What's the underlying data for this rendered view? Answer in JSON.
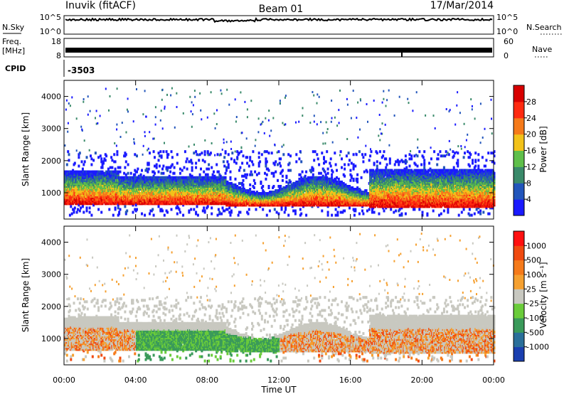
{
  "header": {
    "station": "Inuvik (fitACF)",
    "beam": "Beam 01",
    "date": "17/Mar/2014"
  },
  "strips": {
    "nsky_label": "N.Sky",
    "nsky_ticks": [
      "10^5",
      "10^0"
    ],
    "nsearch_label": "N.Search",
    "nsearch_ticks": [
      "10^5",
      "10^0"
    ],
    "freq_label": "Freq.",
    "freq_unit": "[MHz]",
    "freq_ticks": [
      "18",
      "8"
    ],
    "nave_label": "Nave",
    "nave_ticks": [
      "60",
      "0"
    ],
    "cpid_label": "CPID",
    "cpid_value": "-3503"
  },
  "chart_data": [
    {
      "type": "heatmap",
      "name": "power",
      "ylabel": "Slant Range [km]",
      "xlabel": "Time UT",
      "x_ticks": [
        "00:00",
        "04:00",
        "08:00",
        "12:00",
        "16:00",
        "20:00",
        "00:00"
      ],
      "xlim_hours": [
        0,
        24
      ],
      "y_ticks": [
        1000,
        2000,
        3000,
        4000
      ],
      "ylim": [
        180,
        4500
      ],
      "colorbar": {
        "label": "Power [dB]",
        "ticks": [
          "4",
          "8",
          "12",
          "16",
          "20",
          "24",
          "28"
        ],
        "colors": [
          "#1a1aff",
          "#2255bb",
          "#3a8a6a",
          "#5fbf4a",
          "#f2c21a",
          "#f57a1a",
          "#ff2a10",
          "#d80000"
        ]
      }
    },
    {
      "type": "heatmap",
      "name": "velocity",
      "ylabel": "Slant Range [km]",
      "xlabel": "Time UT",
      "x_ticks": [
        "00:00",
        "04:00",
        "08:00",
        "12:00",
        "16:00",
        "20:00",
        "00:00"
      ],
      "xlim_hours": [
        0,
        24
      ],
      "y_ticks": [
        1000,
        2000,
        3000,
        4000
      ],
      "ylim": [
        180,
        4500
      ],
      "colorbar": {
        "label": "Velocity [m s⁻¹]",
        "ticks": [
          "1000",
          "500",
          "100",
          "25",
          "-25",
          "-100",
          "-500",
          "-1000"
        ],
        "colors": [
          "#1a3fb0",
          "#2a6f9a",
          "#3a9a5a",
          "#6acc3a",
          "#c8c8c0",
          "#f5a030",
          "#f57a1a",
          "#f04a10",
          "#ff1010"
        ]
      }
    }
  ]
}
